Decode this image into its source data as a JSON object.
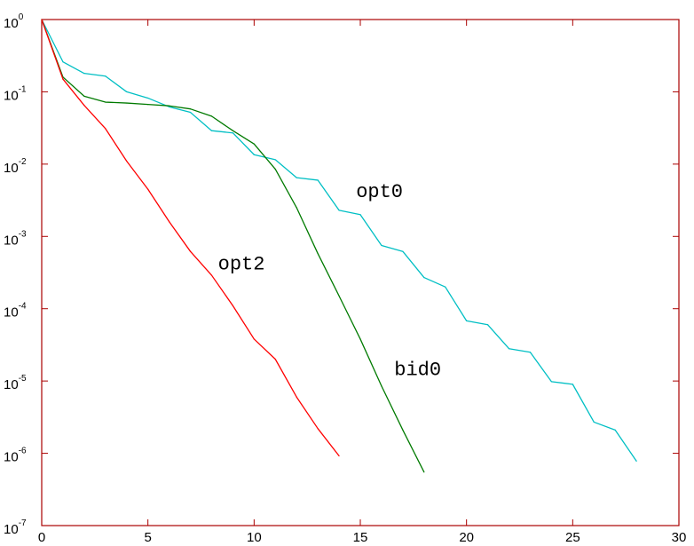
{
  "chart_data": {
    "type": "line",
    "title": "",
    "xlabel": "",
    "ylabel": "",
    "y_scale": "log",
    "xlim": [
      0,
      30
    ],
    "ylim": [
      1e-07,
      1
    ],
    "grid": false,
    "x_ticks": [
      "0",
      "5",
      "10",
      "15",
      "20",
      "25",
      "30"
    ],
    "y_ticks": [
      {
        "base": "10",
        "exp": "0"
      },
      {
        "base": "10",
        "exp": "-1"
      },
      {
        "base": "10",
        "exp": "-2"
      },
      {
        "base": "10",
        "exp": "-3"
      },
      {
        "base": "10",
        "exp": "-4"
      },
      {
        "base": "10",
        "exp": "-5"
      },
      {
        "base": "10",
        "exp": "-6"
      },
      {
        "base": "10",
        "exp": "-7"
      }
    ],
    "colors": {
      "axes": "#aa0000",
      "opt0": "#00bfc4",
      "bid0": "#007a00",
      "opt2": "#ff0000"
    },
    "series": [
      {
        "name": "opt0",
        "color": "#00bfc4",
        "x": [
          0,
          1,
          2,
          3,
          4,
          5,
          6,
          7,
          8,
          9,
          10,
          11,
          12,
          13,
          14,
          15,
          16,
          17,
          18,
          19,
          20,
          21,
          22,
          23,
          24,
          25,
          26,
          27,
          28
        ],
        "values": [
          1,
          0.26,
          0.18,
          0.165,
          0.1,
          0.082,
          0.062,
          0.052,
          0.029,
          0.027,
          0.0135,
          0.0115,
          0.0065,
          0.006,
          0.0023,
          0.002,
          0.00075,
          0.00062,
          0.00027,
          0.0002,
          6.8e-05,
          6e-05,
          2.8e-05,
          2.5e-05,
          9.8e-06,
          9e-06,
          2.7e-06,
          2.1e-06,
          7.8e-07
        ]
      },
      {
        "name": "bid0",
        "color": "#007a00",
        "x": [
          0,
          1,
          2,
          3,
          4,
          5,
          6,
          7,
          8,
          9,
          10,
          11,
          12,
          13,
          14,
          15,
          16,
          17,
          18
        ],
        "values": [
          1,
          0.16,
          0.087,
          0.072,
          0.07,
          0.067,
          0.064,
          0.058,
          0.046,
          0.029,
          0.019,
          0.0085,
          0.0025,
          0.00058,
          0.00015,
          3.8e-05,
          8.5e-06,
          2.1e-06,
          5.5e-07
        ]
      },
      {
        "name": "opt2",
        "color": "#ff0000",
        "x": [
          0,
          1,
          2,
          3,
          4,
          5,
          6,
          7,
          8,
          9,
          10,
          11,
          12,
          13,
          14
        ],
        "values": [
          1,
          0.15,
          0.065,
          0.031,
          0.011,
          0.0045,
          0.0016,
          0.00062,
          0.00029,
          0.00011,
          3.8e-05,
          2e-05,
          6e-06,
          2.2e-06,
          9.2e-07
        ]
      }
    ],
    "annotations": [
      {
        "text": "opt0",
        "x": 14.8,
        "y": 0.0035
      },
      {
        "text": "opt2",
        "x": 8.3,
        "y": 0.00035
      },
      {
        "text": "bid0",
        "x": 16.6,
        "y": 1.2e-05
      }
    ]
  }
}
